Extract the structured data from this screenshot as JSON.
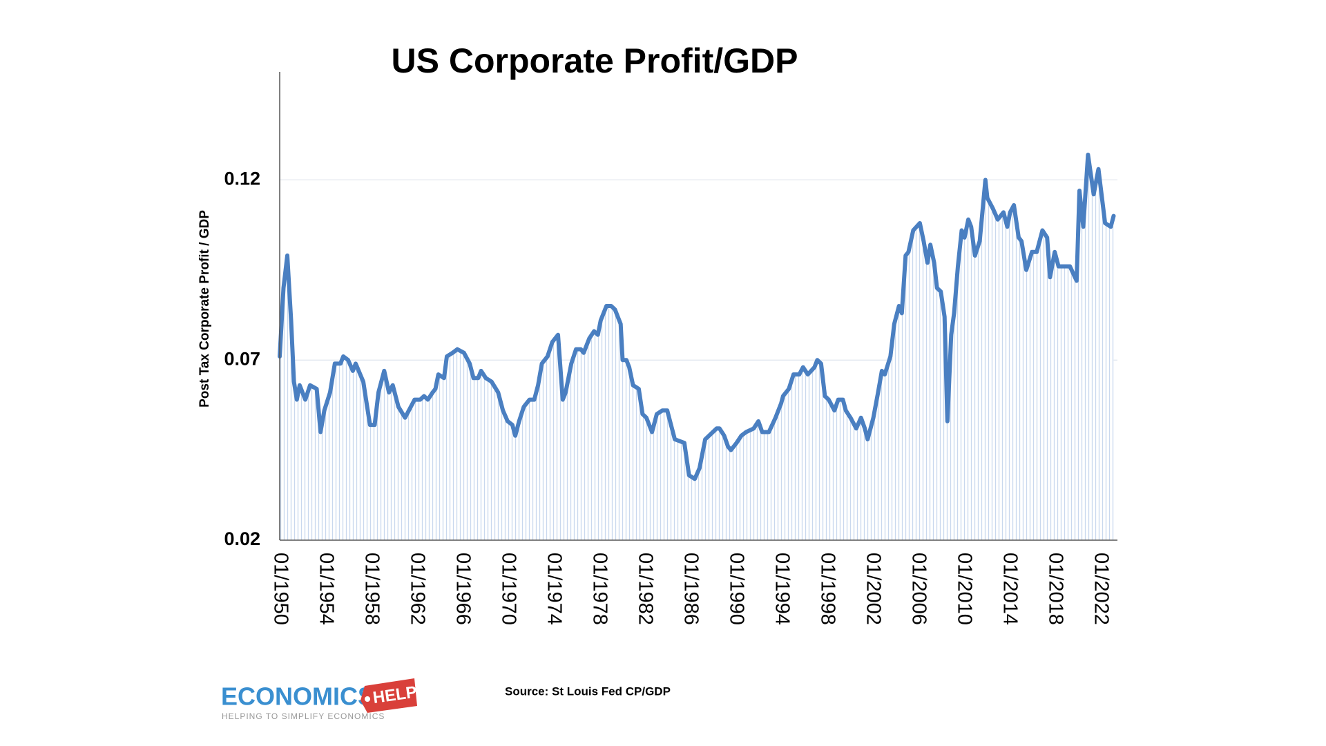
{
  "chart_data": {
    "type": "line",
    "title": "US Corporate Profit/GDP",
    "y_label": "Post Tax Corporate Profit / GDP",
    "source": "Source: St Louis Fed CP/GDP",
    "logo": {
      "name": "ECONOMICS",
      "tag": "HELP",
      "tagline": "HELPING TO SIMPLIFY ECONOMICS"
    },
    "ylim": [
      0.02,
      0.15
    ],
    "yticks": [
      0.02,
      0.07,
      0.12
    ],
    "grid": true,
    "xlim": [
      "01/1950",
      "07/2023"
    ],
    "xticks": [
      "01/1950",
      "01/1954",
      "01/1958",
      "01/1962",
      "01/1966",
      "01/1970",
      "01/1974",
      "01/1978",
      "01/1982",
      "01/1986",
      "01/1990",
      "01/1994",
      "01/1998",
      "01/2002",
      "01/2006",
      "01/2010",
      "01/2014",
      "01/2018",
      "01/2022"
    ],
    "x": [
      "01/1950",
      "05/1950",
      "09/1950",
      "01/1951",
      "04/1951",
      "07/1951",
      "10/1951",
      "04/1952",
      "09/1952",
      "04/1953",
      "08/1953",
      "12/1953",
      "06/1954",
      "11/1954",
      "05/1955",
      "08/1955",
      "01/1956",
      "06/1956",
      "09/1956",
      "05/1957",
      "12/1957",
      "05/1958",
      "09/1958",
      "03/1959",
      "08/1959",
      "12/1959",
      "06/1960",
      "01/1961",
      "07/1961",
      "11/1961",
      "05/1962",
      "09/1962",
      "01/1963",
      "06/1963",
      "09/1963",
      "12/1963",
      "06/1964",
      "09/1964",
      "03/1965",
      "08/1965",
      "03/1966",
      "09/1966",
      "01/1967",
      "06/1967",
      "09/1967",
      "02/1968",
      "08/1968",
      "03/1969",
      "08/1969",
      "01/1970",
      "06/1970",
      "09/1970",
      "01/1971",
      "06/1971",
      "12/1971",
      "05/1972",
      "09/1972",
      "01/1973",
      "07/1973",
      "12/1973",
      "06/1974",
      "11/1974",
      "02/1975",
      "08/1975",
      "01/1976",
      "06/1976",
      "09/1976",
      "03/1977",
      "08/1977",
      "12/1977",
      "03/1978",
      "09/1978",
      "02/1979",
      "06/1979",
      "12/1979",
      "02/1980",
      "06/1980",
      "09/1980",
      "01/1981",
      "07/1981",
      "11/1981",
      "03/1982",
      "09/1982",
      "02/1983",
      "08/1983",
      "01/1984",
      "05/1984",
      "09/1984",
      "07/1985",
      "12/1985",
      "06/1986",
      "11/1986",
      "05/1987",
      "09/1987",
      "05/1988",
      "08/1988",
      "01/1989",
      "05/1989",
      "08/1989",
      "02/1990",
      "07/1990",
      "12/1990",
      "08/1991",
      "01/1992",
      "05/1992",
      "12/1992",
      "07/1993",
      "01/1994",
      "03/1994",
      "09/1994",
      "02/1995",
      "08/1995",
      "12/1995",
      "05/1996",
      "12/1996",
      "03/1997",
      "07/1997",
      "11/1997",
      "03/1998",
      "09/1998",
      "01/1999",
      "06/1999",
      "09/1999",
      "02/2000",
      "08/2000",
      "01/2001",
      "05/2001",
      "08/2001",
      "02/2002",
      "07/2002",
      "11/2002",
      "02/2003",
      "08/2003",
      "12/2003",
      "05/2004",
      "08/2004",
      "12/2004",
      "03/2005",
      "08/2005",
      "03/2006",
      "07/2006",
      "11/2006",
      "02/2007",
      "06/2007",
      "09/2007",
      "01/2008",
      "05/2008",
      "08/2008",
      "12/2008",
      "03/2009",
      "07/2009",
      "11/2009",
      "02/2010",
      "06/2010",
      "09/2010",
      "01/2011",
      "06/2011",
      "12/2011",
      "02/2012",
      "08/2012",
      "01/2013",
      "07/2013",
      "11/2013",
      "02/2014",
      "06/2014",
      "11/2014",
      "02/2015",
      "07/2015",
      "01/2016",
      "06/2016",
      "12/2016",
      "05/2017",
      "08/2017",
      "01/2018",
      "05/2018",
      "12/2018",
      "05/2019",
      "12/2019",
      "03/2020",
      "07/2020",
      "12/2020",
      "06/2021",
      "11/2021",
      "06/2022",
      "12/2022",
      "03/2023"
    ],
    "series": [
      {
        "name": "CP/GDP",
        "color": "#4a7fc1",
        "values": [
          0.071,
          0.09,
          0.099,
          0.081,
          0.064,
          0.059,
          0.063,
          0.059,
          0.063,
          0.062,
          0.05,
          0.056,
          0.061,
          0.069,
          0.069,
          0.071,
          0.07,
          0.067,
          0.069,
          0.064,
          0.052,
          0.052,
          0.061,
          0.067,
          0.061,
          0.063,
          0.057,
          0.054,
          0.057,
          0.059,
          0.059,
          0.06,
          0.059,
          0.061,
          0.062,
          0.066,
          0.065,
          0.071,
          0.072,
          0.073,
          0.072,
          0.069,
          0.065,
          0.065,
          0.067,
          0.065,
          0.064,
          0.061,
          0.056,
          0.053,
          0.052,
          0.049,
          0.053,
          0.057,
          0.059,
          0.059,
          0.063,
          0.069,
          0.071,
          0.075,
          0.077,
          0.059,
          0.061,
          0.069,
          0.073,
          0.073,
          0.072,
          0.076,
          0.078,
          0.077,
          0.081,
          0.085,
          0.085,
          0.084,
          0.08,
          0.07,
          0.07,
          0.068,
          0.063,
          0.062,
          0.055,
          0.054,
          0.05,
          0.055,
          0.056,
          0.056,
          0.052,
          0.048,
          0.047,
          0.038,
          0.037,
          0.04,
          0.048,
          0.049,
          0.051,
          0.051,
          0.049,
          0.046,
          0.045,
          0.047,
          0.049,
          0.05,
          0.051,
          0.053,
          0.05,
          0.05,
          0.054,
          0.058,
          0.06,
          0.062,
          0.066,
          0.066,
          0.068,
          0.066,
          0.068,
          0.07,
          0.069,
          0.06,
          0.059,
          0.056,
          0.059,
          0.059,
          0.056,
          0.054,
          0.051,
          0.054,
          0.051,
          0.048,
          0.054,
          0.061,
          0.067,
          0.066,
          0.071,
          0.08,
          0.085,
          0.083,
          0.099,
          0.1,
          0.106,
          0.108,
          0.103,
          0.097,
          0.102,
          0.097,
          0.09,
          0.089,
          0.082,
          0.053,
          0.077,
          0.083,
          0.096,
          0.106,
          0.104,
          0.109,
          0.107,
          0.099,
          0.103,
          0.12,
          0.115,
          0.112,
          0.109,
          0.111,
          0.107,
          0.111,
          0.113,
          0.104,
          0.103,
          0.095,
          0.1,
          0.1,
          0.106,
          0.104,
          0.093,
          0.1,
          0.096,
          0.096,
          0.096,
          0.092,
          0.117,
          0.107,
          0.127,
          0.116,
          0.123,
          0.108,
          0.107,
          0.11
        ]
      }
    ]
  }
}
